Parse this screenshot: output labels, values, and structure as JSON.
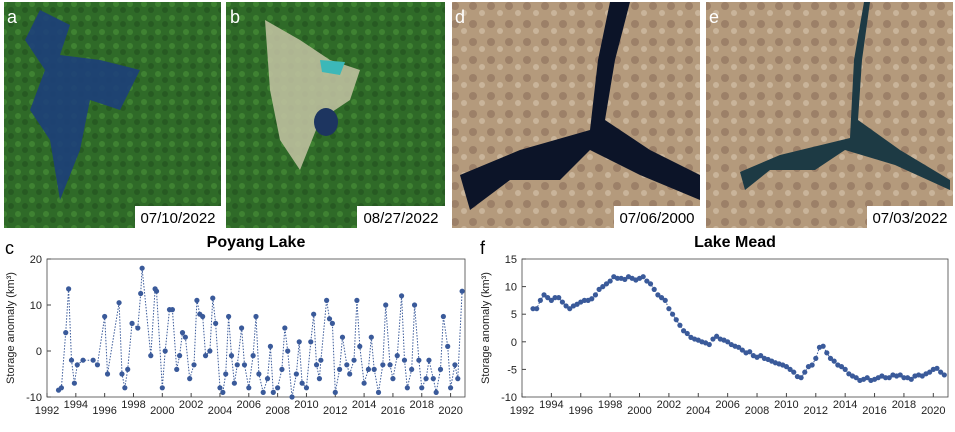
{
  "images": [
    {
      "label": "a",
      "date": "07/10/2022"
    },
    {
      "label": "b",
      "date": "08/27/2022"
    },
    {
      "label": "d",
      "date": "07/06/2000"
    },
    {
      "label": "e",
      "date": "07/03/2022"
    }
  ],
  "chart_data": [
    {
      "type": "line",
      "label": "c",
      "title": "Poyang Lake",
      "y_label": "Storage anomaly (km³)",
      "color": "#3a5a9a",
      "x": [
        1992.8,
        1993.0,
        1993.3,
        1993.5,
        1993.7,
        1993.9,
        1994.1,
        1994.5,
        1995.2,
        1995.5,
        1996.0,
        1996.2,
        1997.0,
        1997.2,
        1997.4,
        1997.6,
        1997.9,
        1998.3,
        1998.5,
        1998.6,
        1999.2,
        1999.5,
        1999.6,
        2000.0,
        2000.2,
        2000.5,
        2000.7,
        2001.0,
        2001.2,
        2001.4,
        2001.6,
        2001.9,
        2002.2,
        2002.4,
        2002.6,
        2002.8,
        2003.0,
        2003.3,
        2003.5,
        2003.7,
        2004.0,
        2004.2,
        2004.4,
        2004.6,
        2004.8,
        2005.0,
        2005.2,
        2005.5,
        2005.7,
        2006.0,
        2006.3,
        2006.5,
        2006.7,
        2007.0,
        2007.3,
        2007.5,
        2007.7,
        2008.0,
        2008.3,
        2008.5,
        2008.7,
        2009.0,
        2009.3,
        2009.5,
        2009.7,
        2010.0,
        2010.3,
        2010.5,
        2010.7,
        2010.9,
        2011.0,
        2011.4,
        2011.6,
        2011.8,
        2012.0,
        2012.3,
        2012.5,
        2012.8,
        2013.0,
        2013.3,
        2013.5,
        2013.7,
        2014.0,
        2014.3,
        2014.5,
        2014.7,
        2015.0,
        2015.3,
        2015.5,
        2015.8,
        2016.0,
        2016.3,
        2016.6,
        2016.8,
        2017.0,
        2017.3,
        2017.5,
        2017.8,
        2018.0,
        2018.3,
        2018.5,
        2018.8,
        2019.0,
        2019.3,
        2019.5,
        2019.8,
        2020.0,
        2020.3,
        2020.5,
        2020.8
      ],
      "values": [
        -8.5,
        -8,
        4,
        13.5,
        -2,
        -7,
        -3,
        -2,
        -2,
        -3,
        7.5,
        -5,
        10.5,
        -5,
        -8,
        -4,
        6,
        5,
        12.5,
        18,
        -1,
        13.5,
        13,
        -8,
        0,
        9,
        9,
        -4,
        -1,
        4,
        3,
        -6,
        -3,
        11,
        8,
        7.5,
        -1,
        0,
        11.5,
        6,
        -8,
        -9,
        -5,
        7.5,
        -1,
        -7,
        -3,
        5,
        -3,
        -8,
        -1,
        7.5,
        -5,
        -9,
        -6,
        1,
        -9,
        -8,
        -4,
        5,
        0,
        -10,
        -5,
        2,
        -7,
        -8,
        2,
        8,
        -3,
        -6,
        -2,
        11,
        7,
        6,
        -9,
        -4,
        3,
        -3,
        -5,
        -2,
        11,
        1,
        -7,
        -4,
        3,
        -4,
        -9,
        -3,
        10,
        -3,
        -6,
        -1,
        12,
        -2,
        -8,
        -4,
        10,
        -2,
        -8,
        -6,
        -2,
        -6,
        -9,
        -4,
        7.5,
        1,
        -8,
        -3,
        -6,
        13
      ],
      "xlim": [
        1992,
        2021
      ],
      "xticks": [
        1992,
        1994,
        1996,
        1998,
        2000,
        2002,
        2004,
        2006,
        2008,
        2010,
        2012,
        2014,
        2016,
        2018,
        2020
      ],
      "ylim": [
        -10,
        20
      ],
      "yticks": [
        -10,
        0,
        10,
        20
      ]
    },
    {
      "type": "line",
      "label": "f",
      "title": "Lake Mead",
      "y_label": "Storage anomaly (km³)",
      "color": "#3a5a9a",
      "x": [
        1992.75,
        1993.0,
        1993.25,
        1993.5,
        1993.75,
        1994.0,
        1994.25,
        1994.5,
        1994.75,
        1995.0,
        1995.25,
        1995.5,
        1995.75,
        1996.0,
        1996.25,
        1996.5,
        1996.75,
        1997.0,
        1997.25,
        1997.5,
        1997.75,
        1998.0,
        1998.25,
        1998.5,
        1998.75,
        1999.0,
        1999.25,
        1999.5,
        1999.75,
        2000.0,
        2000.25,
        2000.5,
        2000.75,
        2001.0,
        2001.25,
        2001.5,
        2001.75,
        2002.0,
        2002.25,
        2002.5,
        2002.75,
        2003.0,
        2003.25,
        2003.5,
        2003.75,
        2004.0,
        2004.25,
        2004.5,
        2004.75,
        2005.0,
        2005.25,
        2005.5,
        2005.75,
        2006.0,
        2006.25,
        2006.5,
        2006.75,
        2007.0,
        2007.25,
        2007.5,
        2007.75,
        2008.0,
        2008.25,
        2008.5,
        2008.75,
        2009.0,
        2009.25,
        2009.5,
        2009.75,
        2010.0,
        2010.25,
        2010.5,
        2010.75,
        2011.0,
        2011.25,
        2011.5,
        2011.75,
        2012.0,
        2012.25,
        2012.5,
        2012.75,
        2013.0,
        2013.25,
        2013.5,
        2013.75,
        2014.0,
        2014.25,
        2014.5,
        2014.75,
        2015.0,
        2015.25,
        2015.5,
        2015.75,
        2016.0,
        2016.25,
        2016.5,
        2016.75,
        2017.0,
        2017.25,
        2017.5,
        2017.75,
        2018.0,
        2018.25,
        2018.5,
        2018.75,
        2019.0,
        2019.25,
        2019.5,
        2019.75,
        2020.0,
        2020.25,
        2020.5,
        2020.75
      ],
      "values": [
        6,
        6,
        7.5,
        8.5,
        8,
        7.5,
        8,
        8,
        7.2,
        6.5,
        6,
        6.5,
        6.8,
        7.2,
        7.5,
        7.5,
        7.8,
        8.5,
        9.5,
        10,
        10.5,
        11,
        11.8,
        11.5,
        11.5,
        11.3,
        11.8,
        11.5,
        11.2,
        11.5,
        11.8,
        11,
        10.5,
        9.5,
        8.5,
        8,
        7.5,
        6,
        5,
        4,
        3,
        2,
        1.5,
        0.8,
        0.5,
        0.3,
        0,
        -0.2,
        -0.5,
        0.5,
        1,
        0.5,
        0.3,
        0,
        -0.5,
        -0.8,
        -1,
        -1.5,
        -2,
        -1.8,
        -2.5,
        -2.8,
        -2.5,
        -3,
        -3.2,
        -3.5,
        -3.8,
        -4,
        -4.2,
        -4.5,
        -5,
        -5.5,
        -6.3,
        -6.5,
        -5.5,
        -4.5,
        -4.2,
        -3,
        -1,
        -0.8,
        -2,
        -3,
        -3.5,
        -4.2,
        -4.5,
        -5,
        -5.8,
        -6.2,
        -6.5,
        -7,
        -6.8,
        -6.5,
        -7,
        -6.8,
        -6.5,
        -6.2,
        -6.5,
        -6.5,
        -6,
        -6.2,
        -6,
        -6.5,
        -6.5,
        -6.8,
        -6.2,
        -6,
        -6.2,
        -5.8,
        -5.5,
        -5,
        -4.8,
        -5.5,
        -6
      ],
      "xlim": [
        1992,
        2021
      ],
      "xticks": [
        1992,
        1994,
        1996,
        1998,
        2000,
        2002,
        2004,
        2006,
        2008,
        2010,
        2012,
        2014,
        2016,
        2018,
        2020
      ],
      "ylim": [
        -10,
        15
      ],
      "yticks": [
        -10,
        -5,
        0,
        5,
        10,
        15
      ]
    }
  ]
}
